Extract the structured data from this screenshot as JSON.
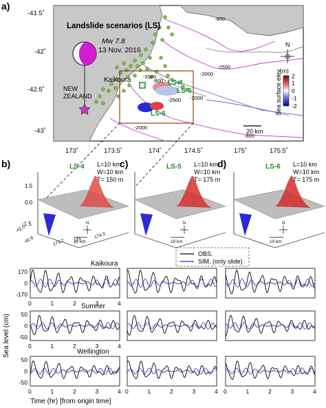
{
  "panel_labels": {
    "a": "a)",
    "b": "b)",
    "c": "c)",
    "d": "d)"
  },
  "map": {
    "title": "Landslide scenarios (LS)",
    "event_magnitude": "Mw 7.8",
    "event_date": "13 Nov. 2016",
    "place_kaikoura": "Kaikoura",
    "place_nz": "NEW ZEALAND",
    "lat_ticks": [
      "-41.5˚",
      "-42˚",
      "-42.5˚",
      "-43˚"
    ],
    "lon_ticks": [
      "173˚",
      "173.5˚",
      "174˚",
      "174.5˚",
      "175˚",
      "175.5˚"
    ],
    "contours": [
      "-800",
      "-2000",
      "-2000",
      "-2000",
      "-2500",
      "-2500",
      "-2000",
      "-800",
      "-800"
    ],
    "scalebar": "20 km",
    "north": "N",
    "colorbar_title": "Sea surface elev.",
    "colorbar_unit": "(m)",
    "colorbar_ticks": [
      "2",
      "1",
      "0",
      "-1",
      "-2"
    ],
    "ls_labels": [
      "LS-4",
      "LS-5",
      "LS-6"
    ],
    "colors": {
      "land": "#c8c8c8",
      "sea": "#ffffff",
      "dots": "#7cc242",
      "contour_magenta": "#c23bc2",
      "contour_blue": "#6a6ad8",
      "box": "#8b4513"
    }
  },
  "scenarios": [
    {
      "id": "LS-4",
      "L": "L=10 km",
      "W": "W=10 km",
      "T": "T= 150 m"
    },
    {
      "id": "LS-5",
      "L": "L=10 km",
      "W": "W=10 km",
      "T": "T= 175 m"
    },
    {
      "id": "LS-6",
      "L": "L=10 km",
      "W": "W=10 km",
      "T": "T= 175 m"
    }
  ],
  "surface_axis": {
    "z_ticks": [
      "1.5",
      "0.0",
      "-1.5"
    ],
    "y_ticks": [
      "-42.5",
      "-42.6"
    ],
    "x_ticks": [
      "173.7",
      "174",
      "174.3"
    ],
    "scale": "10 km",
    "north": "N"
  },
  "legend": {
    "obs": "OBS.",
    "sim": "SIM. (only slide)"
  },
  "stations": [
    "Kaikoura",
    "Sumner",
    "Wellington"
  ],
  "y_label": "Sea level (cm)",
  "x_label": "Time (hr) [from origin time]",
  "yticks_kaikoura": [
    "170",
    "0",
    "-170"
  ],
  "yticks_other": [
    "50",
    "0",
    "-50"
  ],
  "xticks": [
    "0",
    "1",
    "2",
    "3",
    "4"
  ],
  "chart_data": {
    "type": "line",
    "xlabel": "Time (hr) [from origin time]",
    "ylabel": "Sea level (cm)",
    "xlim": [
      0,
      4
    ],
    "rows": [
      {
        "station": "Kaikoura",
        "ylim": [
          -170,
          170
        ]
      },
      {
        "station": "Sumner",
        "ylim": [
          -50,
          50
        ]
      },
      {
        "station": "Wellington",
        "ylim": [
          -50,
          50
        ]
      }
    ],
    "columns": [
      "LS-4",
      "LS-5",
      "LS-6"
    ],
    "series": [
      {
        "name": "OBS."
      },
      {
        "name": "SIM. (only slide)"
      }
    ]
  }
}
